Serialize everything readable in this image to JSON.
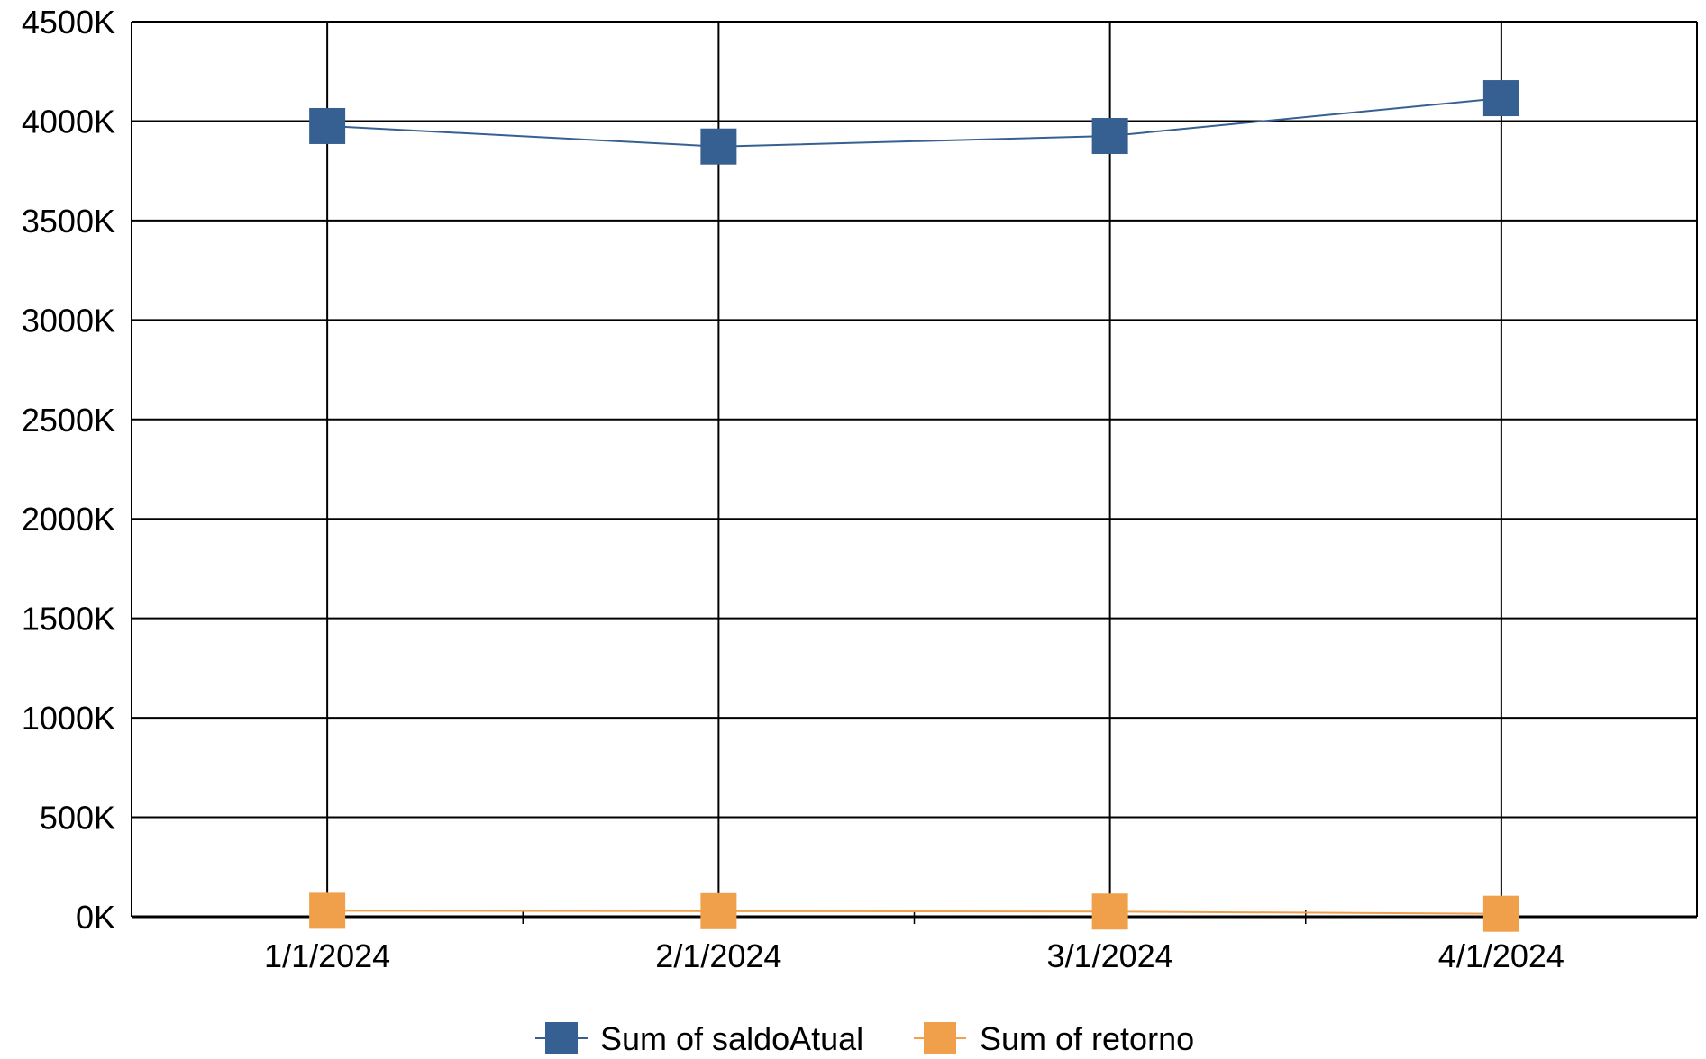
{
  "chart_data": {
    "type": "line",
    "x": [
      "1/1/2024",
      "2/1/2024",
      "3/1/2024",
      "4/1/2024"
    ],
    "y_ticks": [
      "0K",
      "500K",
      "1000K",
      "1500K",
      "2000K",
      "2500K",
      "3000K",
      "3500K",
      "4000K",
      "4500K"
    ],
    "ylim": [
      0,
      4500000
    ],
    "grid": true,
    "legend_position": "bottom",
    "series": [
      {
        "name": "Sum of saldoAtual",
        "color": "#376092",
        "marker": "square",
        "values": [
          3975000,
          3872000,
          3925000,
          4115000
        ]
      },
      {
        "name": "Sum of retorno",
        "color": "#F0A04B",
        "marker": "square",
        "values": [
          30000,
          28000,
          26000,
          15000
        ]
      }
    ]
  }
}
